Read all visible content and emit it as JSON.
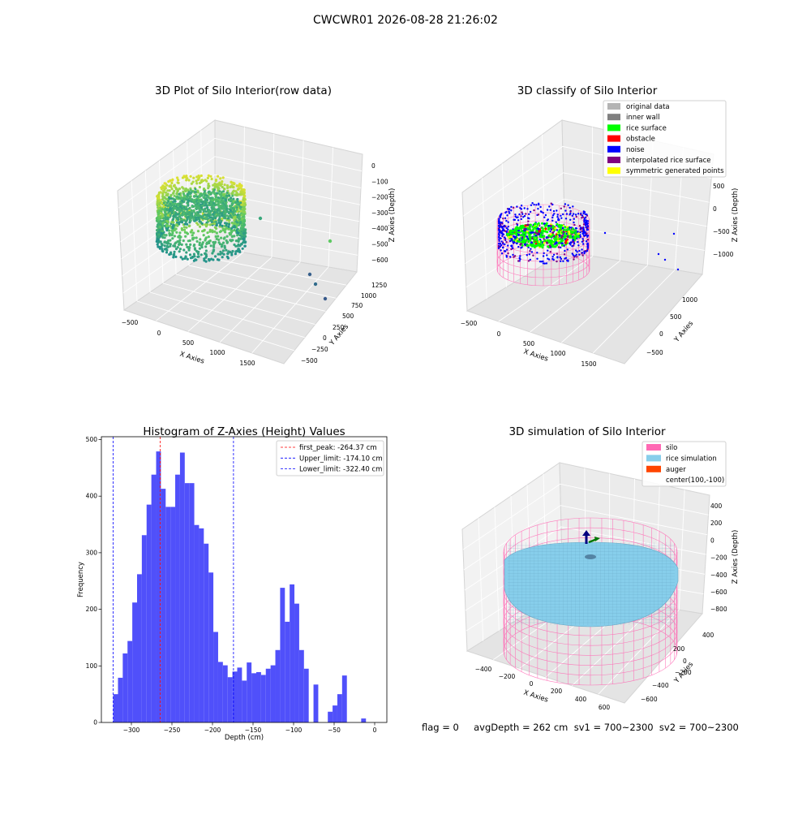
{
  "figure": {
    "suptitle": "CWCWR01 2026-08-28 21:26:02",
    "footer": "flag = 0     avgDepth = 262 cm  sv1 = 700~2300  sv2 = 700~2300"
  },
  "chart_data": [
    {
      "type": "scatter",
      "subtype": "3d",
      "title": "3D Plot of Silo Interior(row data)",
      "xlabel": "X Axies",
      "ylabel": "Y Axies",
      "zlabel": "Z Axies (Depth)",
      "x_ticks": [
        "−500",
        "0",
        "500",
        "1000",
        "1500"
      ],
      "y_ticks": [
        "−500",
        "−250",
        "0",
        "250",
        "500",
        "750",
        "1000",
        "1250"
      ],
      "z_ticks": [
        "0",
        "−100",
        "−200",
        "−300",
        "−400",
        "−500",
        "−600"
      ],
      "colormap": "viridis",
      "outlier_points": [
        {
          "x": 900,
          "y": 700,
          "z": -300
        },
        {
          "x": 1600,
          "y": 1000,
          "z": -520
        },
        {
          "x": 1500,
          "y": 900,
          "z": -650
        },
        {
          "x": 1550,
          "y": 850,
          "z": -700
        },
        {
          "x": 1650,
          "y": 800,
          "z": -760
        }
      ]
    },
    {
      "type": "scatter",
      "subtype": "3d",
      "title": "3D classify of Silo Interior",
      "xlabel": "X Axies",
      "ylabel": "Y Axies",
      "zlabel": "Z Axies (Depth)",
      "x_ticks": [
        "−500",
        "0",
        "500",
        "1000",
        "1500"
      ],
      "y_ticks": [
        "−500",
        "0",
        "500",
        "1000"
      ],
      "z_ticks": [
        "500",
        "0",
        "−500",
        "−1000"
      ],
      "legend_position": "top-right",
      "legend": [
        {
          "label": "original data",
          "color": "#b4b4b4"
        },
        {
          "label": "inner wall",
          "color": "#808080"
        },
        {
          "label": "rice surface",
          "color": "#00ff00"
        },
        {
          "label": "obstacle",
          "color": "#ff0000"
        },
        {
          "label": "noise",
          "color": "#0000ff"
        },
        {
          "label": "interpolated rice surface",
          "color": "#800080"
        },
        {
          "label": "symmetric generated points",
          "color": "#ffff00"
        }
      ]
    },
    {
      "type": "bar",
      "subtype": "histogram",
      "title": "Histogram of Z-Axies (Height) Values",
      "xlabel": "Depth (cm)",
      "ylabel": "Frequency",
      "xlim": [
        -337,
        15
      ],
      "ylim": [
        0,
        505
      ],
      "x_ticks": [
        -300,
        -250,
        -200,
        -150,
        -100,
        -50,
        0
      ],
      "x_tick_labels": [
        "−300",
        "−250",
        "−200",
        "−150",
        "−100",
        "−50",
        "0"
      ],
      "y_ticks": [
        0,
        100,
        200,
        300,
        400,
        500
      ],
      "y_tick_labels": [
        "0",
        "100",
        "200",
        "300",
        "400",
        "500"
      ],
      "bar_color": "#5050fa",
      "bin_start": -322.4,
      "bin_width": 5.88,
      "counts": [
        50,
        79,
        122,
        144,
        212,
        262,
        331,
        385,
        438,
        479,
        413,
        381,
        381,
        438,
        477,
        423,
        423,
        349,
        343,
        316,
        265,
        160,
        107,
        101,
        80,
        90,
        97,
        74,
        106,
        87,
        89,
        84,
        95,
        101,
        128,
        238,
        178,
        244,
        210,
        128,
        95,
        0,
        67,
        0,
        0,
        19,
        30,
        50,
        83,
        0,
        0,
        0,
        7
      ],
      "vlines": [
        {
          "label": "first_peak: -264.37 cm",
          "x": -264.37,
          "color": "#ff0000"
        },
        {
          "label": "Upper_limit: -174.10 cm",
          "x": -174.1,
          "color": "#0000ff"
        },
        {
          "label": "Lower_limit: -322.40 cm",
          "x": -322.4,
          "color": "#0000ff"
        }
      ],
      "legend_position": "top-right"
    },
    {
      "type": "scatter",
      "subtype": "3d",
      "title": "3D simulation of Silo Interior",
      "xlabel": "X Axies",
      "ylabel": "Y Axies",
      "zlabel": "Z Axies (Depth)",
      "x_ticks": [
        "−400",
        "−200",
        "0",
        "200",
        "400",
        "600"
      ],
      "y_ticks": [
        "400",
        "200",
        "0",
        "−200",
        "−400",
        "−600"
      ],
      "z_ticks": [
        "400",
        "200",
        "0",
        "−200",
        "−400",
        "−600",
        "−800"
      ],
      "legend_position": "top-right",
      "legend": [
        {
          "label": "silo",
          "color": "#ff69b4"
        },
        {
          "label": "rice simulation",
          "color": "#87ceeb"
        },
        {
          "label": "auger",
          "color": "#ff4500"
        },
        {
          "label": "center(100,-100)",
          "color": ""
        }
      ]
    }
  ]
}
